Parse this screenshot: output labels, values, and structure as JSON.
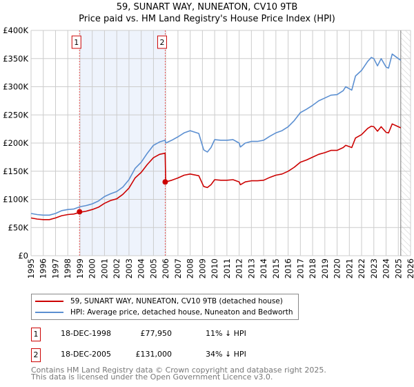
{
  "chart_data": {
    "type": "line",
    "title": "59, SUNART WAY, NUNEATON, CV10 9TB",
    "subtitle": "Price paid vs. HM Land Registry's House Price Index (HPI)",
    "xlabel": "",
    "ylabel": "",
    "xlim": [
      1995,
      2026
    ],
    "ylim": [
      0,
      400000
    ],
    "x_ticks": [
      "1995",
      "1996",
      "1997",
      "1998",
      "1999",
      "2000",
      "2001",
      "2002",
      "2003",
      "2004",
      "2005",
      "2006",
      "2007",
      "2008",
      "2009",
      "2010",
      "2011",
      "2012",
      "2013",
      "2014",
      "2015",
      "2016",
      "2017",
      "2018",
      "2019",
      "2020",
      "2021",
      "2022",
      "2023",
      "2024",
      "2025",
      "2026"
    ],
    "y_ticks": [
      {
        "value": 0,
        "label": "£0"
      },
      {
        "value": 50000,
        "label": "£50K"
      },
      {
        "value": 100000,
        "label": "£100K"
      },
      {
        "value": 150000,
        "label": "£150K"
      },
      {
        "value": 200000,
        "label": "£200K"
      },
      {
        "value": 250000,
        "label": "£250K"
      },
      {
        "value": 300000,
        "label": "£300K"
      },
      {
        "value": 350000,
        "label": "£350K"
      },
      {
        "value": 400000,
        "label": "£400K"
      }
    ],
    "grid": true,
    "shaded_period": [
      1998.96,
      2005.96
    ],
    "forecast_hatch_from": 2025.2,
    "x": [
      1995,
      1995.5,
      1996,
      1996.5,
      1997,
      1997.5,
      1998,
      1998.5,
      1999,
      1999.5,
      2000,
      2000.5,
      2001,
      2001.5,
      2002,
      2002.5,
      2003,
      2003.5,
      2004,
      2004.5,
      2005,
      2005.5,
      2005.95,
      2006,
      2006.5,
      2007,
      2007.5,
      2008,
      2008.7,
      2009.1,
      2009.4,
      2009.7,
      2010,
      2010.5,
      2011,
      2011.5,
      2012,
      2012.1,
      2012.5,
      2013,
      2013.5,
      2014,
      2014.5,
      2015,
      2015.5,
      2016,
      2016.5,
      2017,
      2017.5,
      2018,
      2018.5,
      2019,
      2019.5,
      2020,
      2020.5,
      2020.7,
      2021.2,
      2021.5,
      2022,
      2022.5,
      2022.8,
      2023,
      2023.3,
      2023.6,
      2024,
      2024.2,
      2024.5,
      2025,
      2025.2
    ],
    "series": [
      {
        "name": "59, SUNART WAY, NUNEATON, CV10 9TB (detached house)",
        "color": "#cc0000",
        "values": [
          67,
          65,
          64,
          64,
          67,
          71,
          73,
          74,
          77,
          79,
          82,
          86,
          93,
          98,
          101,
          109,
          120,
          138,
          148,
          162,
          174,
          180,
          182,
          131,
          134,
          138,
          143,
          145,
          142,
          123,
          121,
          126,
          135,
          134,
          134,
          135,
          131,
          126,
          131,
          133,
          133,
          134,
          139,
          143,
          145,
          150,
          157,
          166,
          170,
          175,
          180,
          183,
          187,
          187,
          192,
          196,
          192,
          209,
          215,
          226,
          230,
          229,
          221,
          229,
          219,
          218,
          234,
          229,
          227
        ]
      },
      {
        "name": "HPI: Average price, detached house, Nuneaton and Bedworth",
        "color": "#5b8fd1",
        "values": [
          75,
          73,
          72,
          72,
          75,
          80,
          82,
          83,
          87,
          89,
          92,
          97,
          105,
          110,
          114,
          122,
          135,
          155,
          166,
          182,
          196,
          202,
          205,
          200,
          205,
          211,
          218,
          222,
          217,
          188,
          184,
          192,
          206,
          205,
          205,
          206,
          200,
          193,
          200,
          203,
          203,
          205,
          212,
          218,
          222,
          229,
          240,
          254,
          260,
          267,
          275,
          280,
          285,
          286,
          293,
          300,
          294,
          319,
          329,
          345,
          352,
          350,
          337,
          350,
          335,
          333,
          358,
          350,
          347
        ]
      }
    ],
    "values_unit": "£ thousands",
    "sales": [
      {
        "id": "1",
        "year": 1998.96,
        "value": 77.95,
        "date": "18-DEC-1998",
        "price": "£77,950",
        "hpi_diff": "11% ↓ HPI"
      },
      {
        "id": "2",
        "year": 2005.96,
        "value": 131,
        "date": "18-DEC-2005",
        "price": "£131,000",
        "hpi_diff": "34% ↓ HPI"
      }
    ]
  },
  "footer": {
    "line1": "Contains HM Land Registry data © Crown copyright and database right 2025.",
    "line2": "This data is licensed under the Open Government Licence v3.0."
  }
}
